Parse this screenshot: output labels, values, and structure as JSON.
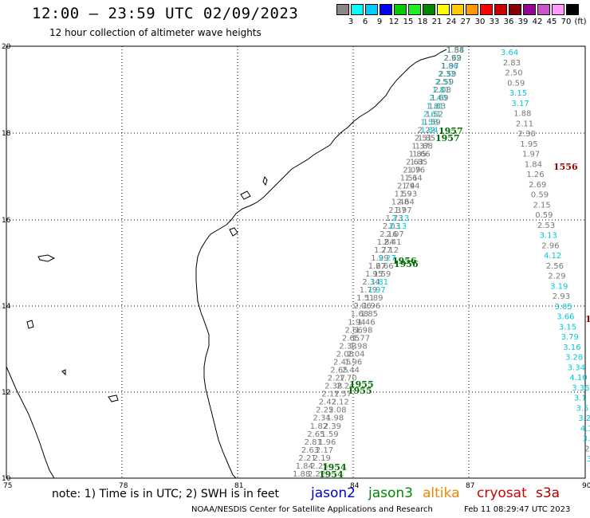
{
  "header": {
    "title": "12:00 – 23:59 UTC 02/09/2023",
    "subtitle": "12 hour collection of altimeter wave heights"
  },
  "legend": {
    "colors": [
      "#888888",
      "#00ffff",
      "#00ccff",
      "#0000ff",
      "#00cc00",
      "#22ee22",
      "#008800",
      "#ffff00",
      "#ffcc00",
      "#ff9900",
      "#ff0000",
      "#cc0000",
      "#880000",
      "#990099",
      "#cc55cc",
      "#ff99ff",
      "#000000"
    ],
    "labels": [
      "3",
      "6",
      "9",
      "12",
      "15",
      "18",
      "21",
      "24",
      "27",
      "30",
      "33",
      "36",
      "39",
      "42",
      "45",
      "70",
      "(ft)"
    ]
  },
  "axes": {
    "x_ticks": [
      "75",
      "78",
      "81",
      "84",
      "87",
      "90"
    ],
    "y_ticks": [
      "20",
      "18",
      "16",
      "14",
      "12",
      "10"
    ]
  },
  "tracks": {
    "left_grey": [
      "1.88",
      "1.84",
      "2.21",
      "2.63",
      "2.81",
      "2.65",
      "1.82",
      "2.34",
      "2.25",
      "2.42",
      "2.17",
      "2.38",
      "2.27",
      "2.65",
      "2.45",
      "2.08",
      "2.33",
      "2.65",
      "2.66",
      "1.94",
      "1.68",
      "2.06",
      "1.51",
      "1.79",
      "2.34",
      "1.95",
      "1.67",
      "1.99",
      "1.77",
      "1.84",
      "2.16",
      "2.03",
      "1.73",
      "2.37",
      "1.48",
      "1.59",
      "2.74",
      "1.51",
      "2.09",
      "2.63",
      "1.85",
      "1.37",
      "2.51",
      "2.22",
      "1.58",
      "2.61",
      "1.81",
      "2.40",
      "1.81",
      "2.51",
      "2.32",
      "1.86",
      "2.92",
      "1.54"
    ],
    "right_grey": [
      "1.88",
      "2.69",
      "1.97",
      "2.59",
      "2.59",
      "2.08",
      "1.69",
      "1.83",
      "1.52",
      "1.59",
      "1.84",
      "1.85",
      "1.88",
      "1.66",
      "1.85",
      "1.76",
      "1.64",
      "1.94",
      "1.93",
      "2.64",
      "1.97",
      "2.13",
      "2.13",
      "2.07",
      "2.41",
      "2.12",
      "2.27",
      "2.66",
      "1.59",
      "1.81",
      "1.97",
      "1.89",
      "1.96",
      "1.85",
      "1.46",
      "1.98",
      "1.77",
      "1.98",
      "2.04",
      "1.96",
      "2.44",
      "1.70",
      "2.24",
      "1.57",
      "2.12",
      "2.08",
      "1.98",
      "2.39",
      "1.59",
      "1.96",
      "2.17",
      "2.19",
      "2.25",
      "2.22"
    ],
    "right_column": [
      {
        "v": "3.64",
        "c": "#00c8d8"
      },
      {
        "v": "2.83",
        "c": "#777777"
      },
      {
        "v": "2.50",
        "c": "#777777"
      },
      {
        "v": "0.59",
        "c": "#777777"
      },
      {
        "v": "3.15",
        "c": "#00c8d8"
      },
      {
        "v": "3.17",
        "c": "#00c8d8"
      },
      {
        "v": "1.88",
        "c": "#777777"
      },
      {
        "v": "2.11",
        "c": "#777777"
      },
      {
        "v": "2.30",
        "c": "#777777"
      },
      {
        "v": "1.95",
        "c": "#777777"
      },
      {
        "v": "1.97",
        "c": "#777777"
      },
      {
        "v": "1.84",
        "c": "#777777"
      },
      {
        "v": "1.26",
        "c": "#777777"
      },
      {
        "v": "2.69",
        "c": "#777777"
      },
      {
        "v": "0.59",
        "c": "#777777"
      },
      {
        "v": "2.15",
        "c": "#777777"
      },
      {
        "v": "0.59",
        "c": "#777777"
      },
      {
        "v": "2.53",
        "c": "#777777"
      },
      {
        "v": "3.13",
        "c": "#00c8d8"
      },
      {
        "v": "2.96",
        "c": "#777777"
      },
      {
        "v": "4.12",
        "c": "#00c8d8"
      },
      {
        "v": "2.56",
        "c": "#777777"
      },
      {
        "v": "2.29",
        "c": "#777777"
      },
      {
        "v": "3.19",
        "c": "#00c8d8"
      },
      {
        "v": "2.93",
        "c": "#777777"
      },
      {
        "v": "3.05",
        "c": "#00c8d8"
      },
      {
        "v": "3.66",
        "c": "#00c8d8"
      },
      {
        "v": "3.15",
        "c": "#00c8d8"
      },
      {
        "v": "3.79",
        "c": "#00c8d8"
      },
      {
        "v": "3.16",
        "c": "#00c8d8"
      },
      {
        "v": "3.28",
        "c": "#00c8d8"
      },
      {
        "v": "3.34",
        "c": "#00c8d8"
      },
      {
        "v": "4.10",
        "c": "#00c8d8"
      },
      {
        "v": "3.36",
        "c": "#00c8d8"
      },
      {
        "v": "3.1",
        "c": "#00c8d8"
      },
      {
        "v": "3.5",
        "c": "#00c8d8"
      },
      {
        "v": "3.2",
        "c": "#00c8d8"
      },
      {
        "v": "4.1",
        "c": "#00c8d8"
      },
      {
        "v": "3.",
        "c": "#00c8d8"
      },
      {
        "v": "2.",
        "c": "#777777"
      },
      {
        "v": "3",
        "c": "#00c8d8"
      }
    ],
    "time_labels": [
      "1957",
      "1957",
      "1956",
      "1956",
      "1955",
      "1955",
      "1954",
      "1954"
    ],
    "red_labels": [
      "1556",
      "1"
    ]
  },
  "notes": {
    "note": "note:  1) Time is in UTC;  2) SWH is in feet",
    "satellites": [
      {
        "name": "jason2",
        "color": "#0000cc"
      },
      {
        "name": "jason3",
        "color": "#008800"
      },
      {
        "name": "altika",
        "color": "#ee8800"
      },
      {
        "name": "cryosat",
        "color": "#cc0000"
      },
      {
        "name": "s3a",
        "color": "#aa0000"
      }
    ],
    "credit": "NOAA/NESDIS Center for Satellite Applications and Research",
    "timestamp": "Feb 11 08:29:47 UTC 2023"
  }
}
